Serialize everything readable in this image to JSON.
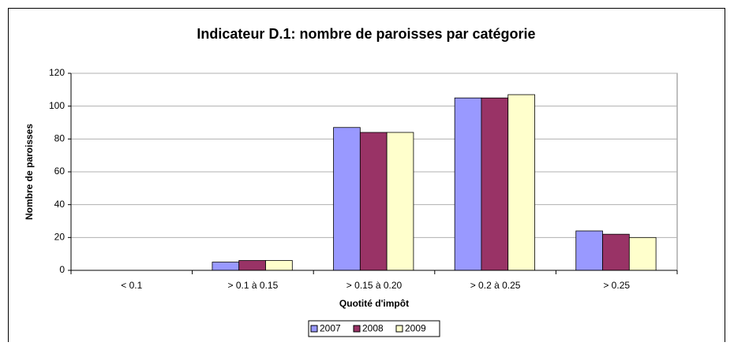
{
  "chart_data": {
    "type": "bar",
    "title": "Indicateur D.1: nombre de paroisses par catégorie",
    "x_label": "Quotité d'impôt",
    "y_label": "Nombre de paroisses",
    "categories": [
      "< 0.1",
      "> 0.1 à 0.15",
      "> 0.15 à 0.20",
      "> 0.2 à 0.25",
      "> 0.25"
    ],
    "series": [
      {
        "name": "2007",
        "color": "#9999ff",
        "values": [
          0,
          5,
          87,
          105,
          24
        ]
      },
      {
        "name": "2008",
        "color": "#993366",
        "values": [
          0,
          6,
          84,
          105,
          22
        ]
      },
      {
        "name": "2009",
        "color": "#ffffcc",
        "values": [
          0,
          6,
          84,
          107,
          20
        ]
      }
    ],
    "ylim": [
      0,
      120
    ],
    "yticks": [
      0,
      20,
      40,
      60,
      80,
      100,
      120
    ],
    "grid": true,
    "legend": "bottom"
  }
}
